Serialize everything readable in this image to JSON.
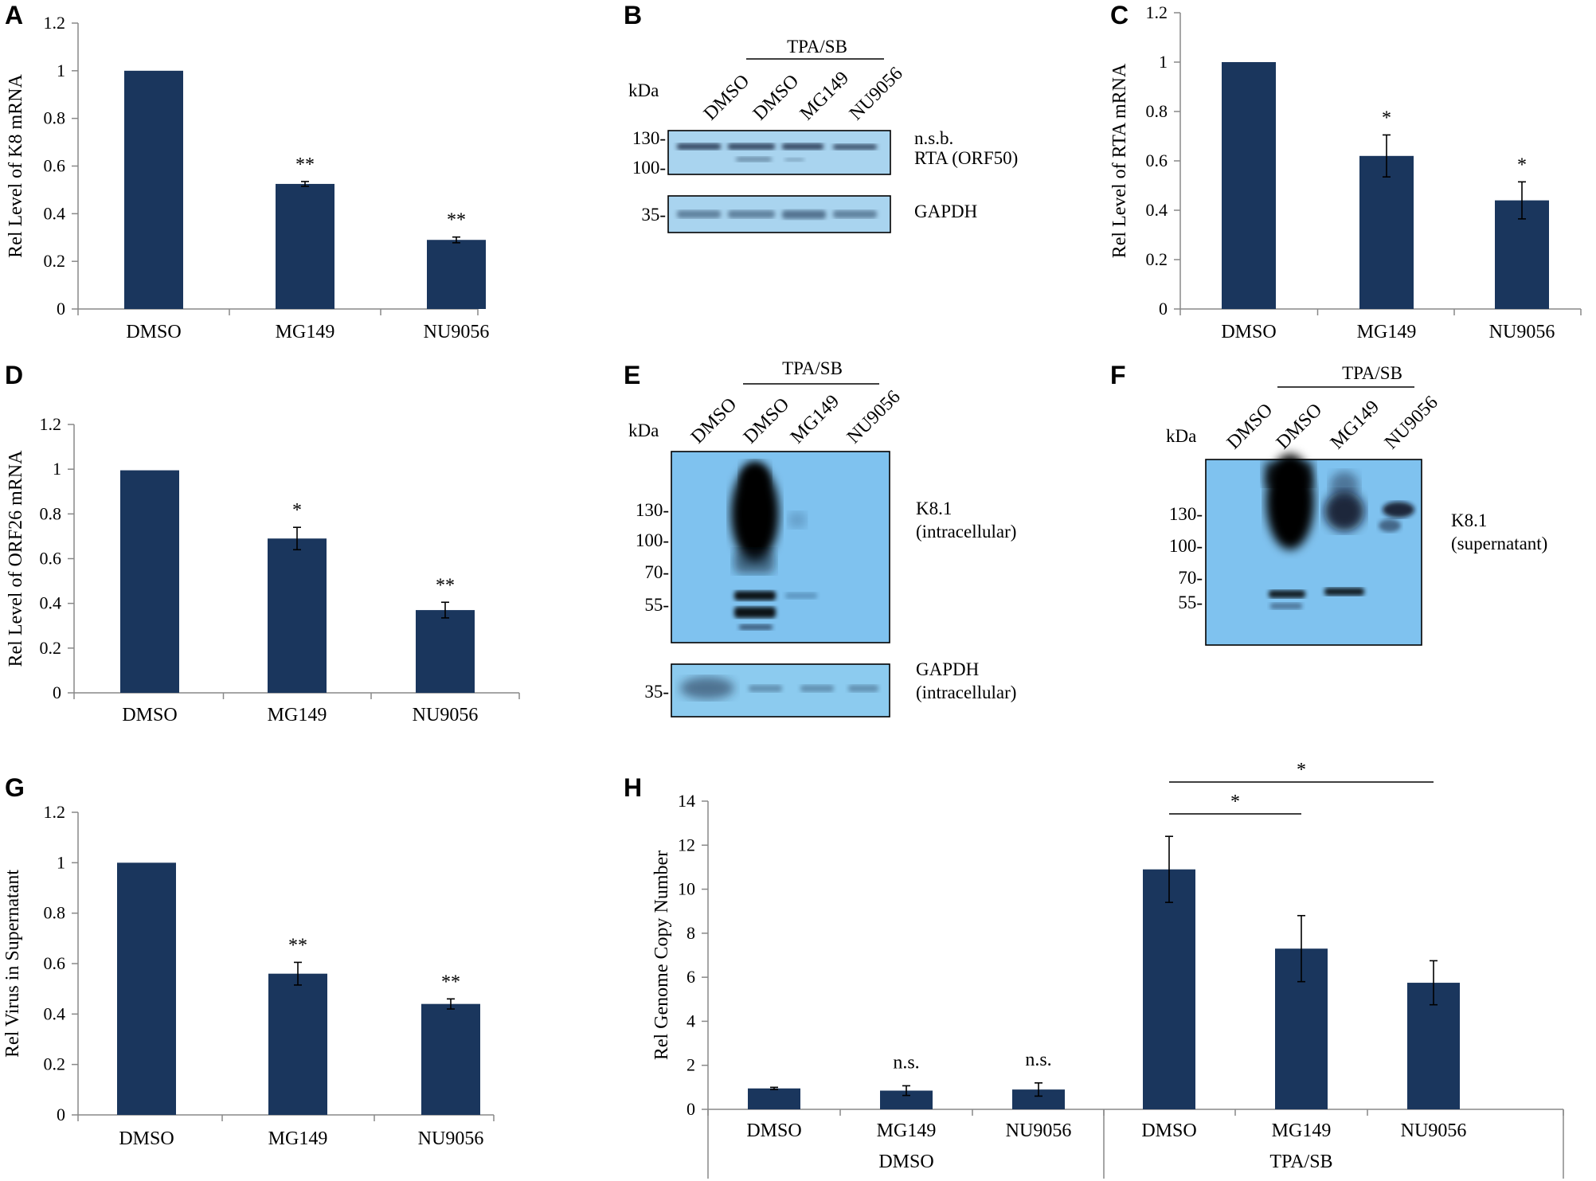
{
  "panels": {
    "A": "A",
    "B": "B",
    "C": "C",
    "D": "D",
    "E": "E",
    "F": "F",
    "G": "G",
    "H": "H"
  },
  "bar_color": "#1a365d",
  "chart_data": [
    {
      "id": "A",
      "type": "bar",
      "categories": [
        "DMSO",
        "MG149",
        "NU9056"
      ],
      "values": [
        1.0,
        0.525,
        0.29
      ],
      "errors": [
        0.0,
        0.01,
        0.012
      ],
      "significance": [
        "",
        "**",
        "**"
      ],
      "ylabel": "Rel Level of K8 mRNA",
      "ylim": [
        0,
        1.2
      ],
      "yticks": [
        "0",
        "0.2",
        "0.4",
        "0.6",
        "0.8",
        "1",
        "1.2"
      ]
    },
    {
      "id": "C",
      "type": "bar",
      "categories": [
        "DMSO",
        "MG149",
        "NU9056"
      ],
      "values": [
        1.0,
        0.62,
        0.44
      ],
      "errors": [
        0.0,
        0.085,
        0.075
      ],
      "significance": [
        "",
        "*",
        "*"
      ],
      "ylabel": "Rel Level of RTA  mRNA",
      "ylim": [
        0,
        1.2
      ],
      "yticks": [
        "0",
        "0.2",
        "0.4",
        "0.6",
        "0.8",
        "1",
        "1.2"
      ]
    },
    {
      "id": "D",
      "type": "bar",
      "categories": [
        "DMSO",
        "MG149",
        "NU9056"
      ],
      "values": [
        0.995,
        0.69,
        0.37
      ],
      "errors": [
        0.0,
        0.05,
        0.035
      ],
      "significance": [
        "",
        "*",
        "**"
      ],
      "ylabel": "Rel Level of ORF26 mRNA",
      "ylim": [
        0,
        1.2
      ],
      "yticks": [
        "0",
        "0.2",
        "0.4",
        "0.6",
        "0.8",
        "1",
        "1.2"
      ]
    },
    {
      "id": "G",
      "type": "bar",
      "categories": [
        "DMSO",
        "MG149",
        "NU9056"
      ],
      "values": [
        1.0,
        0.56,
        0.44
      ],
      "errors": [
        0.0,
        0.045,
        0.02
      ],
      "significance": [
        "",
        "**",
        "**"
      ],
      "ylabel": "Rel Virus in Supernatant",
      "ylim": [
        0,
        1.2
      ],
      "yticks": [
        "0",
        "0.2",
        "0.4",
        "0.6",
        "0.8",
        "1",
        "1.2"
      ]
    },
    {
      "id": "H",
      "type": "bar",
      "categories": [
        "DMSO",
        "MG149",
        "NU9056",
        "DMSO",
        "MG149",
        "NU9056"
      ],
      "groups": [
        "DMSO",
        "TPA/SB"
      ],
      "values": [
        0.95,
        0.85,
        0.9,
        10.9,
        7.3,
        5.75
      ],
      "errors": [
        0.05,
        0.22,
        0.3,
        1.5,
        1.5,
        1.0
      ],
      "significance": [
        "",
        "n.s.",
        "n.s.",
        "",
        "",
        ""
      ],
      "comparisons": [
        {
          "from": 3,
          "to": 4,
          "label": "*"
        },
        {
          "from": 3,
          "to": 5,
          "label": "*"
        }
      ],
      "ylabel": "Rel Genome Copy Number",
      "ylim": [
        0,
        14
      ],
      "yticks": [
        "0",
        "2",
        "4",
        "6",
        "8",
        "10",
        "12",
        "14"
      ]
    }
  ],
  "blots": {
    "B": {
      "kda": "kDa",
      "header": "TPA/SB",
      "lanes": [
        "DMSO",
        "DMSO",
        "MG149",
        "NU9056"
      ],
      "markers1": [
        "130-",
        "100-"
      ],
      "markers2": [
        "35-"
      ],
      "label_nsb": "n.s.b.",
      "label_rta": "RTA (ORF50)",
      "label_gapdh": "GAPDH"
    },
    "E": {
      "kda": "kDa",
      "header": "TPA/SB",
      "lanes": [
        "DMSO",
        "DMSO",
        "MG149",
        "NU9056"
      ],
      "markers1": [
        "130-",
        "100-",
        "70-",
        "55-"
      ],
      "markers2": [
        "35-"
      ],
      "label1a": "K8.1",
      "label1b": "(intracellular)",
      "label2a": "GAPDH",
      "label2b": "(intracellular)"
    },
    "F": {
      "kda": "kDa",
      "header": "TPA/SB",
      "lanes": [
        "DMSO",
        "DMSO",
        "MG149",
        "NU9056"
      ],
      "markers1": [
        "130-",
        "100-",
        "70-",
        "55-"
      ],
      "label1a": "K8.1",
      "label1b": "(supernatant)"
    }
  }
}
